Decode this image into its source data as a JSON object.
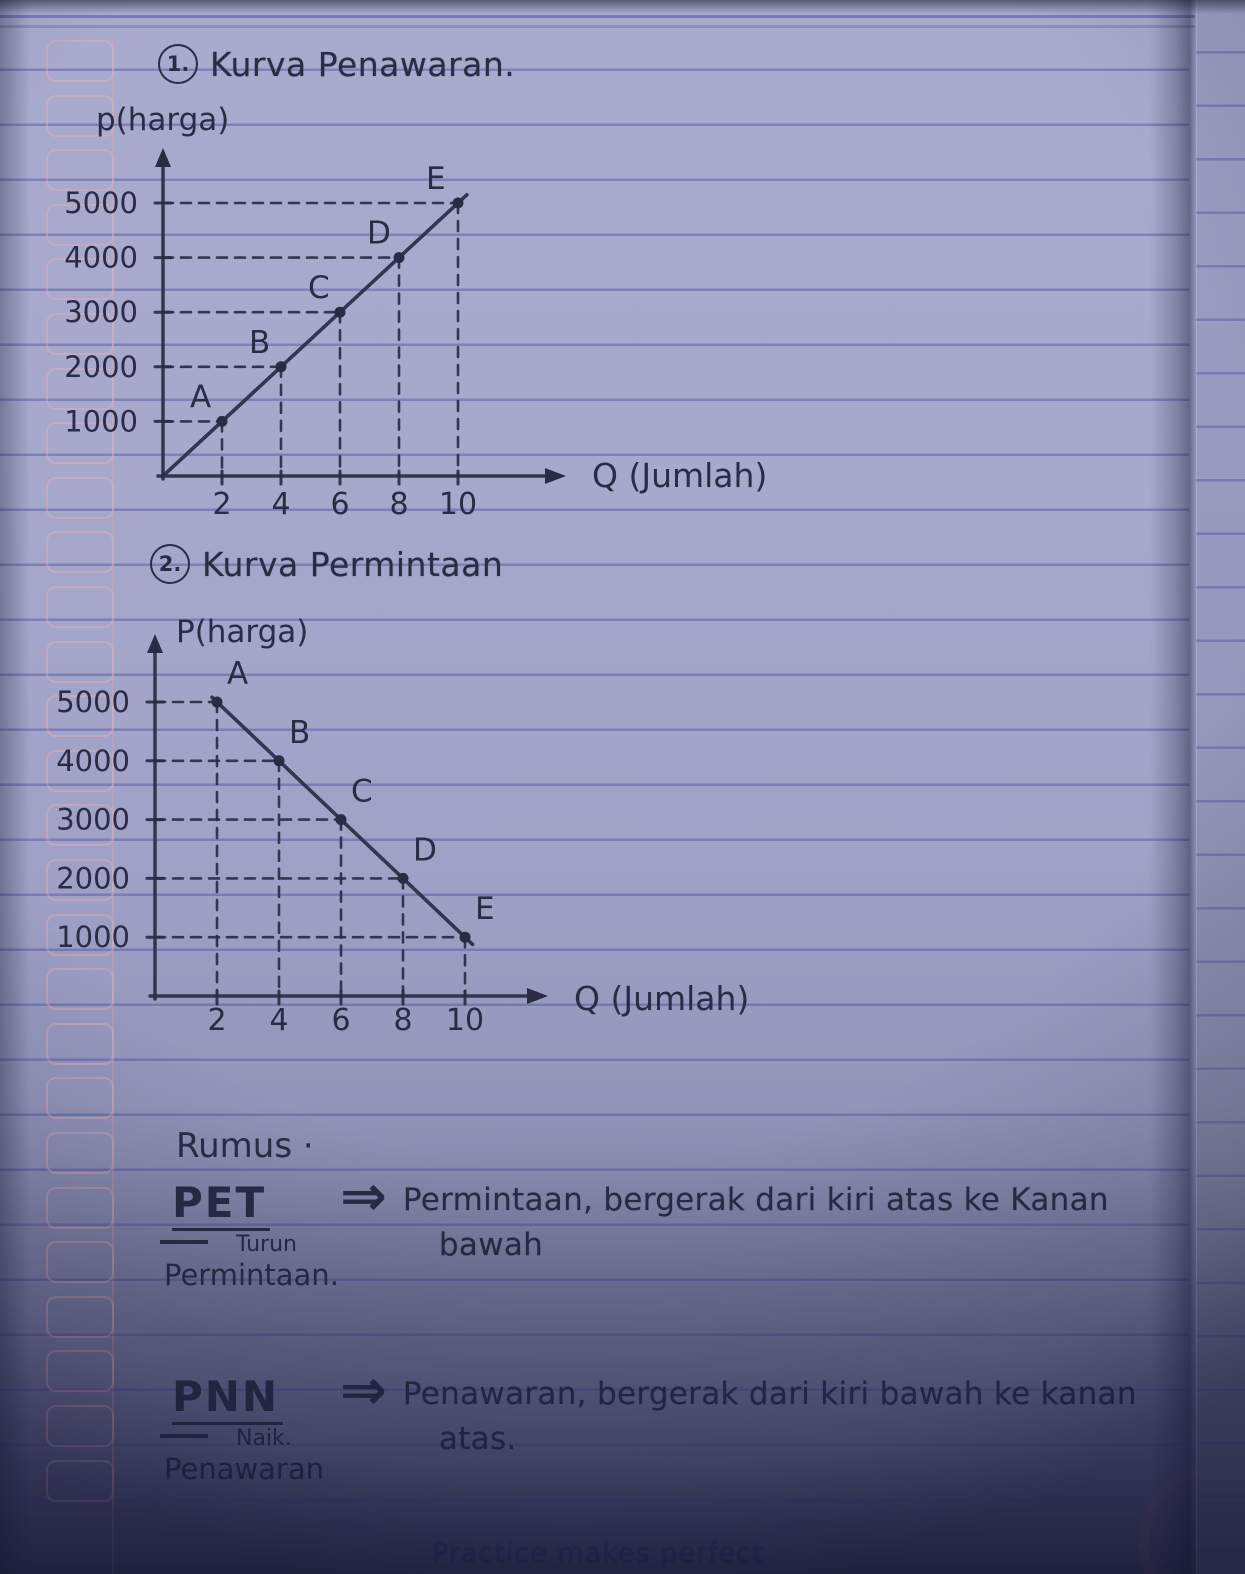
{
  "page": {
    "watermark": "Practice makes perfect"
  },
  "colors": {
    "ink": "#2b2b46",
    "paper": "#a5a6ca",
    "rule_line": "#6468b4",
    "margin_pink": "#f0afb9"
  },
  "charts": [
    {
      "number": "1.",
      "title": "Kurva Penawaran."
    },
    {
      "number": "2.",
      "title": "Kurva Permintaan"
    }
  ],
  "chart_data": [
    {
      "type": "line",
      "title": "Kurva Penawaran.",
      "xlabel": "Q (Jumlah)",
      "ylabel": "p(harga)",
      "x": [
        2,
        4,
        6,
        8,
        10
      ],
      "y": [
        1000,
        2000,
        3000,
        4000,
        5000
      ],
      "point_labels": [
        "A",
        "B",
        "C",
        "D",
        "E"
      ],
      "xticks": [
        2,
        4,
        6,
        8,
        10
      ],
      "yticks": [
        1000,
        2000,
        3000,
        4000,
        5000
      ],
      "xlim": [
        0,
        12
      ],
      "ylim": [
        0,
        5800
      ],
      "grid": "dashed guide lines from axes to each point",
      "line_through_origin": true,
      "legend": "none",
      "description": "Supply curve rising left-bottom to right-top"
    },
    {
      "type": "line",
      "title": "Kurva Permintaan",
      "xlabel": "Q (Jumlah)",
      "ylabel": "P(harga)",
      "x": [
        2,
        4,
        6,
        8,
        10
      ],
      "y": [
        5000,
        4000,
        3000,
        2000,
        1000
      ],
      "point_labels": [
        "A",
        "B",
        "C",
        "D",
        "E"
      ],
      "xticks": [
        2,
        4,
        6,
        8,
        10
      ],
      "yticks": [
        1000,
        2000,
        3000,
        4000,
        5000
      ],
      "xlim": [
        0,
        12
      ],
      "ylim": [
        0,
        5800
      ],
      "grid": "dashed guide lines from axes to each point",
      "line_through_origin": false,
      "legend": "none",
      "description": "Demand curve falling left-top to right-bottom"
    }
  ],
  "rumus": {
    "heading": "Rumus ·",
    "items": [
      {
        "abbr": "PET",
        "small_word": "Turun",
        "below_word": "Permintaan.",
        "arrow": "⇒",
        "line1": "Permintaan, bergerak dari kiri atas ke Kanan",
        "line2": "bawah"
      },
      {
        "abbr": "PNN",
        "small_word": "Naik.",
        "below_word": "Penawaran",
        "arrow": "⇒",
        "line1": "Penawaran, bergerak dari kiri bawah ke kanan",
        "line2": "atas."
      }
    ]
  }
}
